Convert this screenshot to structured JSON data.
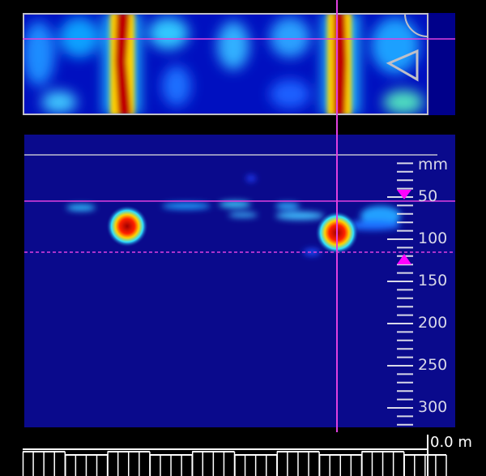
{
  "depth_scale": {
    "unit": "mm",
    "labels": [
      "50",
      "100",
      "150",
      "200",
      "250",
      "300"
    ],
    "label_values": [
      50,
      100,
      150,
      200,
      250,
      300
    ],
    "max_depth_mm": 320
  },
  "depth_gate": {
    "top_mm": 55,
    "bottom_mm": 115
  },
  "distance_readout": "0.0 m",
  "colors": {
    "background": "#0a0a8c",
    "cursor": "#e040e0",
    "gate_marker": "#ff00ff",
    "frame": "#c0c0c8",
    "scale": "#d8d8e8"
  },
  "icons": {
    "plan_corner": "arc-icon",
    "plan_direction": "triangle-left-icon",
    "gate_top": "triangle-down-icon",
    "gate_bottom": "triangle-up-icon"
  }
}
